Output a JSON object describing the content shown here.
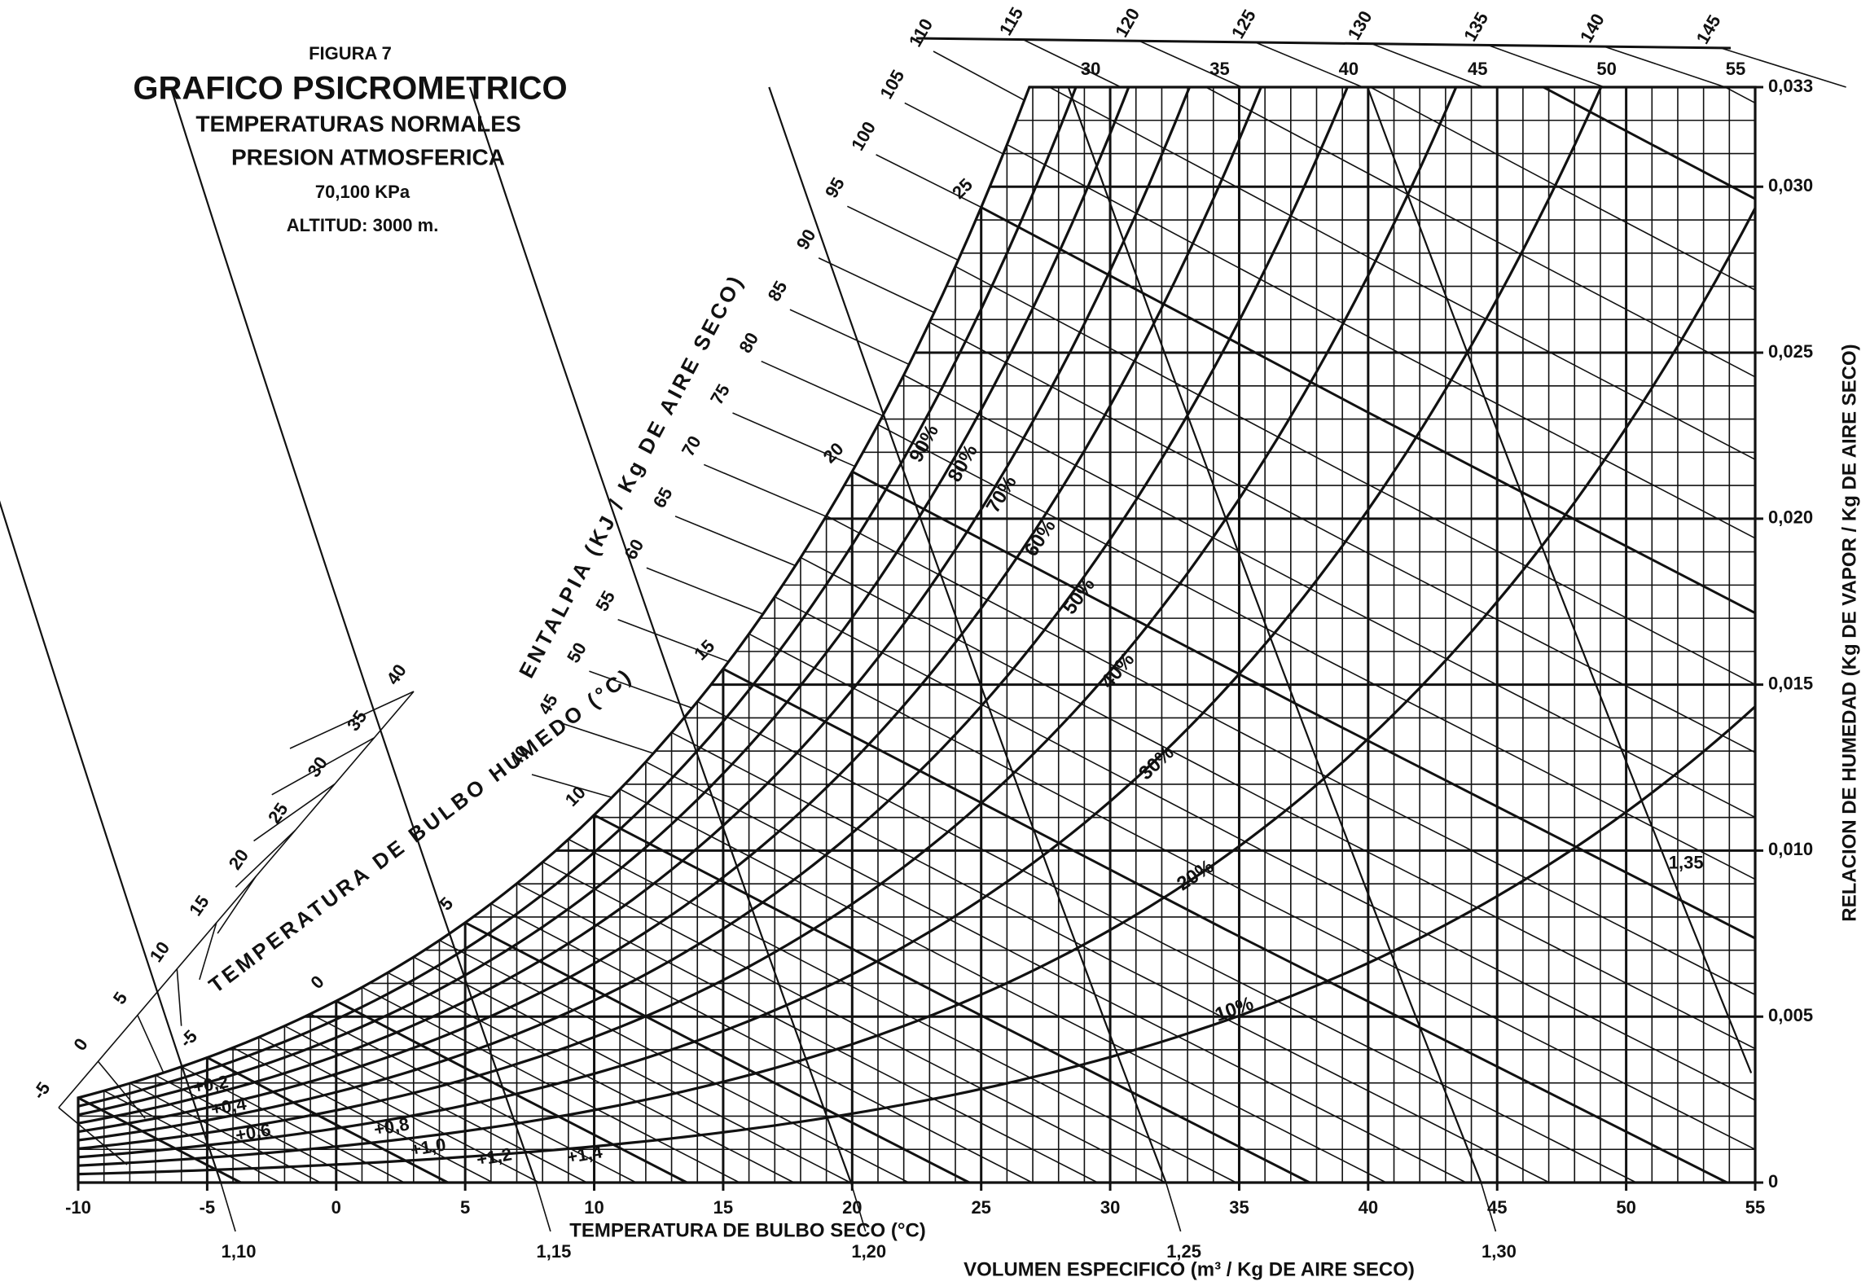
{
  "chart_data": {
    "type": "psychrometric",
    "figure": "FIGURA 7",
    "title": "GRAFICO PSICROMETRICO",
    "subtitle": [
      "TEMPERATURAS NORMALES",
      "PRESION ATMOSFERICA"
    ],
    "pressure": {
      "value": 70.1,
      "label": "70,100 KPa"
    },
    "altitude": "ALTITUD: 3000 m.",
    "xlabel": "TEMPERATURA DE BULBO SECO (°C)",
    "ylabel": "RELACION DE HUMEDAD (Kg DE VAPOR / Kg DE AIRE SECO)",
    "xlim": [
      -10,
      55
    ],
    "xticks": [
      -10,
      -5,
      0,
      5,
      10,
      15,
      20,
      25,
      30,
      35,
      40,
      45,
      50,
      55
    ],
    "ylim": [
      0,
      0.033
    ],
    "yticks": [
      0,
      {
        "value": 0.005,
        "label": "0,005"
      },
      {
        "value": 0.01,
        "label": "0,010"
      },
      {
        "value": 0.015,
        "label": "0,015"
      },
      {
        "value": 0.02,
        "label": "0,020"
      },
      {
        "value": 0.025,
        "label": "0,025"
      },
      {
        "value": 0.03,
        "label": "0,030"
      },
      {
        "value": 0.033,
        "label": "0,033"
      }
    ],
    "top_temps": [
      30,
      35,
      40,
      45,
      50,
      55
    ],
    "relative_humidity": {
      "values": [
        10,
        20,
        30,
        40,
        50,
        60,
        70,
        80,
        90
      ],
      "value_labels": [
        "10%",
        "20%",
        "30%",
        "40%",
        "50%",
        "60%",
        "70%",
        "80%",
        "90%"
      ]
    },
    "wet_bulb": {
      "label": "TEMPERATURA DE BULBO HUMEDO (°C)",
      "ticks": [
        -5,
        0,
        5,
        10,
        15,
        20,
        25
      ]
    },
    "left_scale": [
      -5,
      0,
      5,
      10,
      15,
      20,
      25,
      30,
      35,
      40
    ],
    "enthalpy": {
      "label": "ENTALPIA (KJ / Kg DE AIRE SECO)",
      "ticks": [
        40,
        45,
        50,
        55,
        60,
        65,
        70,
        75,
        80,
        85,
        90,
        95,
        100,
        105,
        110,
        115,
        120,
        125,
        130,
        135,
        140,
        145
      ],
      "marker": 140
    },
    "volume": {
      "label": "VOLUMEN ESPECIFICO (m³ / Kg DE AIRE SECO)",
      "ticks": [
        {
          "value": 1.1,
          "label": "1,10"
        },
        {
          "value": 1.15,
          "label": "1,15"
        },
        {
          "value": 1.2,
          "label": "1,20"
        },
        {
          "value": 1.25,
          "label": "1,25"
        },
        {
          "value": 1.3,
          "label": "1,30"
        },
        {
          "value": 1.35,
          "label": "1,35"
        }
      ]
    },
    "corrections": [
      {
        "value": 0.2,
        "label": "+0,2"
      },
      {
        "value": 0.4,
        "label": "+0,4"
      },
      {
        "value": 0.6,
        "label": "+0,6"
      },
      {
        "value": 0.8,
        "label": "+0,8"
      },
      {
        "value": 1.0,
        "label": "+1,0"
      },
      {
        "value": 1.2,
        "label": "+1,2"
      },
      {
        "value": 1.4,
        "label": "+1,4"
      }
    ]
  }
}
